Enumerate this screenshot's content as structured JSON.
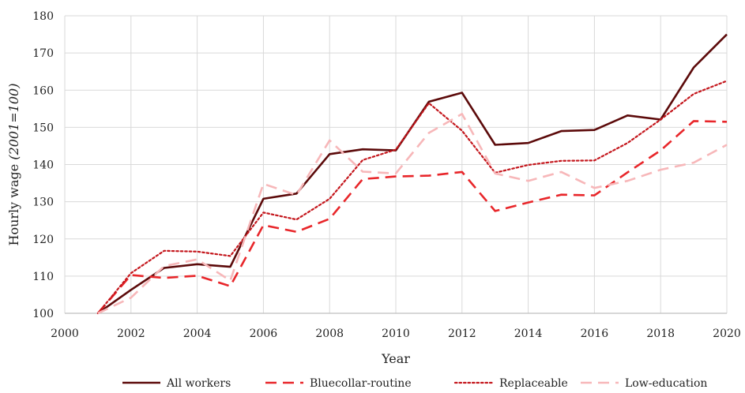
{
  "chart_data": {
    "type": "line",
    "xlabel": "Year",
    "ylabel_main": "Hourly wage ",
    "ylabel_italic": "(2001=100)",
    "xlim": [
      2000,
      2020
    ],
    "ylim": [
      100,
      180
    ],
    "xticks": [
      2000,
      2002,
      2004,
      2006,
      2008,
      2010,
      2012,
      2014,
      2016,
      2018,
      2020
    ],
    "yticks": [
      100,
      110,
      120,
      130,
      140,
      150,
      160,
      170,
      180
    ],
    "grid": "vertical and horizontal",
    "legend_position": "bottom",
    "series": [
      {
        "name": "All workers",
        "color": "#5c0a0a",
        "style": "solid",
        "x": [
          2001,
          2002,
          2003,
          2004,
          2005,
          2006,
          2007,
          2008,
          2009,
          2010,
          2011,
          2012,
          2013,
          2014,
          2015,
          2016,
          2017,
          2018,
          2019,
          2020
        ],
        "values": [
          100,
          106.3,
          112.2,
          113.2,
          112.5,
          130.8,
          132.2,
          142.8,
          144.1,
          143.8,
          156.9,
          159.3,
          145.3,
          145.8,
          149.0,
          149.3,
          153.2,
          152.1,
          166.1,
          175.0
        ]
      },
      {
        "name": "Bluecollar-routine",
        "color": "#e8262a",
        "style": "dashed",
        "x": [
          2001,
          2002,
          2003,
          2004,
          2005,
          2006,
          2007,
          2008,
          2009,
          2010,
          2011,
          2012,
          2013,
          2014,
          2015,
          2016,
          2017,
          2018,
          2019,
          2020
        ],
        "values": [
          100,
          110.3,
          109.5,
          110.1,
          107.3,
          123.7,
          121.9,
          125.4,
          136.1,
          136.8,
          137.0,
          138.0,
          127.5,
          129.8,
          131.9,
          131.7,
          137.9,
          143.8,
          151.7,
          151.5
        ]
      },
      {
        "name": "Replaceable",
        "color": "#c4161c",
        "style": "dotted",
        "x": [
          2001,
          2002,
          2003,
          2004,
          2005,
          2006,
          2007,
          2008,
          2009,
          2010,
          2011,
          2012,
          2013,
          2014,
          2015,
          2016,
          2017,
          2018,
          2019,
          2020
        ],
        "values": [
          100,
          110.8,
          116.8,
          116.6,
          115.4,
          127.1,
          125.2,
          130.8,
          141.2,
          144.0,
          156.5,
          149.1,
          137.8,
          139.9,
          141.0,
          141.1,
          145.8,
          152.1,
          159.0,
          162.5
        ]
      },
      {
        "name": "Low-education",
        "color": "#f7b7b9",
        "style": "dashed",
        "x": [
          2001,
          2002,
          2003,
          2004,
          2005,
          2006,
          2007,
          2008,
          2009,
          2010,
          2011,
          2012,
          2013,
          2014,
          2015,
          2016,
          2017,
          2018,
          2019,
          2020
        ],
        "values": [
          100,
          104.2,
          112.7,
          114.5,
          108.8,
          134.8,
          131.8,
          146.5,
          138.1,
          137.6,
          148.5,
          153.6,
          137.6,
          135.6,
          138.0,
          133.7,
          135.6,
          138.6,
          140.5,
          145.3
        ]
      }
    ]
  }
}
